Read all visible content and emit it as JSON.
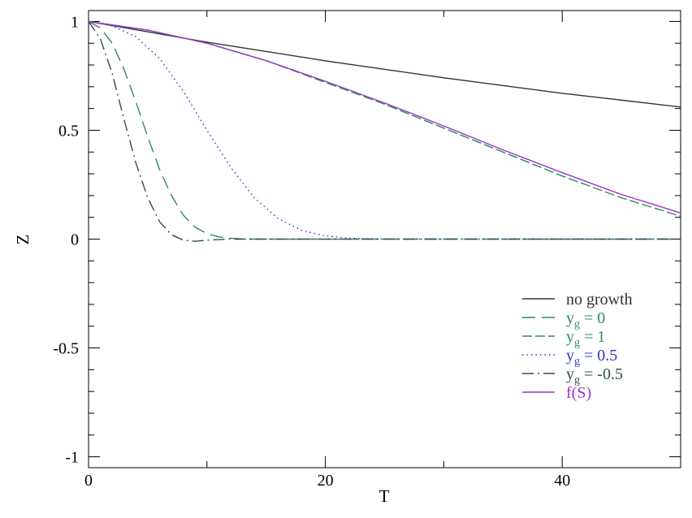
{
  "chart_data": {
    "type": "line",
    "title": "",
    "xlabel": "T",
    "ylabel": "Z",
    "xlim": [
      0,
      50
    ],
    "ylim": [
      -1.05,
      1.05
    ],
    "x_ticks": [
      0,
      20,
      40
    ],
    "x_minor_ticks": [
      10,
      30,
      50
    ],
    "y_ticks": [
      -1,
      -0.5,
      0,
      0.5,
      1
    ],
    "y_tick_labels": [
      "-1",
      "-0.5",
      "0",
      "0.5",
      "1"
    ],
    "grid": false,
    "legend_position": "bottom-right",
    "series": [
      {
        "name": "no growth",
        "name_parts": {
          "base": "no growth",
          "sub": "",
          "rest": ""
        },
        "color": "#333333",
        "dash": "solid",
        "x": [
          0,
          10,
          20,
          30,
          40,
          50
        ],
        "y": [
          1.0,
          0.905,
          0.819,
          0.741,
          0.67,
          0.607
        ]
      },
      {
        "name": "yg = 0",
        "name_parts": {
          "base": "y",
          "sub": "g",
          "rest": " = 0"
        },
        "color": "#2e8b57",
        "dash": "long-dash",
        "x": [
          0,
          1,
          2,
          3,
          4,
          5,
          6,
          7,
          8,
          9,
          10,
          11,
          12,
          13,
          14,
          15,
          20,
          30,
          40,
          50
        ],
        "y": [
          1.0,
          0.97,
          0.9,
          0.78,
          0.63,
          0.47,
          0.32,
          0.2,
          0.11,
          0.055,
          0.025,
          0.01,
          0.004,
          0.001,
          0.0,
          0.0,
          0.0,
          0.0,
          0.0,
          0.0
        ]
      },
      {
        "name": "yg = 1",
        "name_parts": {
          "base": "y",
          "sub": "g",
          "rest": " = 1"
        },
        "color": "#2e8b57",
        "dash": "medium-dash",
        "x": [
          0,
          5,
          10,
          15,
          20,
          25,
          30,
          35,
          40,
          45,
          50
        ],
        "y": [
          1.0,
          0.96,
          0.9,
          0.82,
          0.72,
          0.62,
          0.51,
          0.4,
          0.29,
          0.19,
          0.105
        ]
      },
      {
        "name": "yg = 0.5",
        "name_parts": {
          "base": "y",
          "sub": "g",
          "rest": " = 0.5"
        },
        "color": "#3333cc",
        "dash": "dotted",
        "x": [
          0,
          2,
          4,
          6,
          8,
          10,
          12,
          14,
          16,
          18,
          20,
          22,
          24,
          26,
          30,
          40,
          50
        ],
        "y": [
          1.0,
          0.98,
          0.93,
          0.83,
          0.68,
          0.5,
          0.33,
          0.19,
          0.095,
          0.04,
          0.015,
          0.004,
          0.001,
          0.0,
          0.0,
          0.0,
          0.0
        ]
      },
      {
        "name": "yg = -0.5",
        "name_parts": {
          "base": "y",
          "sub": "g",
          "rest": " = -0.5"
        },
        "color": "#2f4f4f",
        "dash": "dash-dot",
        "x": [
          0,
          1,
          2,
          3,
          4,
          5,
          6,
          7,
          8,
          9,
          10,
          12,
          15,
          20,
          30,
          40,
          50
        ],
        "y": [
          1.0,
          0.92,
          0.76,
          0.55,
          0.35,
          0.19,
          0.08,
          0.02,
          -0.005,
          -0.01,
          -0.005,
          0.0,
          0.0,
          0.0,
          0.0,
          0.0,
          0.0
        ]
      },
      {
        "name": "f(S)",
        "name_parts": {
          "base": "f(S)",
          "sub": "",
          "rest": ""
        },
        "color": "#9932cc",
        "dash": "solid",
        "x": [
          0,
          5,
          10,
          15,
          20,
          25,
          30,
          35,
          40,
          45,
          50
        ],
        "y": [
          1.0,
          0.96,
          0.9,
          0.82,
          0.725,
          0.625,
          0.52,
          0.41,
          0.305,
          0.205,
          0.12
        ]
      }
    ]
  }
}
